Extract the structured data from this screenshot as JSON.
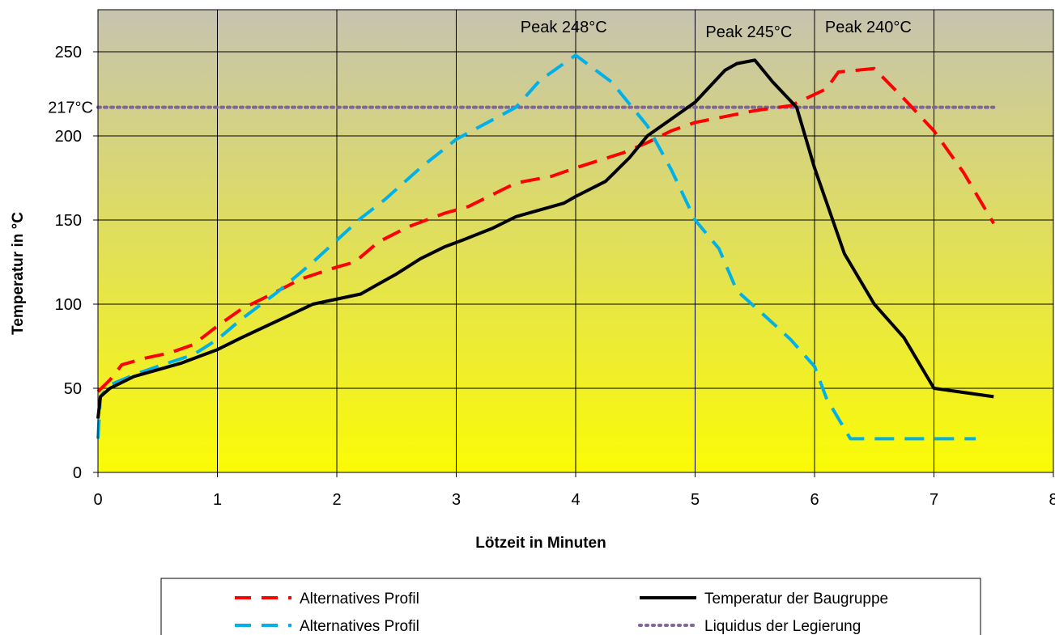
{
  "chart_data": {
    "type": "line",
    "title": "",
    "xlabel": "Lötzeit in Minuten",
    "ylabel": "Temperatur in °C",
    "xlim": [
      0,
      8
    ],
    "ylim": [
      0,
      250
    ],
    "x_ticks": [
      0,
      1,
      2,
      3,
      4,
      5,
      6,
      7,
      8
    ],
    "y_ticks": [
      0,
      50,
      100,
      150,
      200,
      250
    ],
    "grid": true,
    "background_gradient": [
      "#c6c3b0",
      "#fbfb05"
    ],
    "annotations": [
      {
        "text": "Peak 248°C",
        "x": 3.9,
        "y": 265
      },
      {
        "text": "Peak 245°C",
        "x": 5.45,
        "y": 262
      },
      {
        "text": "Peak 240°C",
        "x": 6.45,
        "y": 265
      },
      {
        "text": "217°C",
        "x": 0,
        "y": 217
      }
    ],
    "legend_position": "bottom",
    "series": [
      {
        "name": "Alternatives Profil",
        "color": "#ff0000",
        "style": "dashed",
        "points": [
          [
            0,
            48
          ],
          [
            0.1,
            55
          ],
          [
            0.2,
            64
          ],
          [
            0.4,
            68
          ],
          [
            0.6,
            71
          ],
          [
            0.8,
            76
          ],
          [
            1.0,
            87
          ],
          [
            1.2,
            97
          ],
          [
            1.4,
            104
          ],
          [
            1.7,
            115
          ],
          [
            2.0,
            122
          ],
          [
            2.15,
            125
          ],
          [
            2.35,
            137
          ],
          [
            2.6,
            146
          ],
          [
            2.9,
            154
          ],
          [
            3.1,
            158
          ],
          [
            3.5,
            172
          ],
          [
            3.8,
            176
          ],
          [
            4.0,
            181
          ],
          [
            4.4,
            190
          ],
          [
            4.6,
            196
          ],
          [
            4.8,
            203
          ],
          [
            5.0,
            208
          ],
          [
            5.5,
            215
          ],
          [
            5.8,
            218
          ],
          [
            6.1,
            228
          ],
          [
            6.2,
            238
          ],
          [
            6.5,
            240
          ],
          [
            6.75,
            222
          ],
          [
            7.0,
            203
          ],
          [
            7.25,
            178
          ],
          [
            7.5,
            148
          ]
        ]
      },
      {
        "name": "Alternatives Profil",
        "color": "#00b0e8",
        "style": "dashed",
        "points": [
          [
            0,
            20
          ],
          [
            0.02,
            45
          ],
          [
            0.1,
            52
          ],
          [
            0.3,
            58
          ],
          [
            0.5,
            63
          ],
          [
            0.8,
            70
          ],
          [
            1.0,
            79
          ],
          [
            1.2,
            91
          ],
          [
            1.5,
            107
          ],
          [
            1.8,
            125
          ],
          [
            2.0,
            138
          ],
          [
            2.2,
            151
          ],
          [
            2.4,
            162
          ],
          [
            2.7,
            181
          ],
          [
            3.0,
            198
          ],
          [
            3.5,
            217
          ],
          [
            3.7,
            233
          ],
          [
            4.0,
            248
          ],
          [
            4.3,
            232
          ],
          [
            4.6,
            206
          ],
          [
            4.8,
            180
          ],
          [
            5.0,
            150
          ],
          [
            5.2,
            133
          ],
          [
            5.35,
            108
          ],
          [
            5.6,
            92
          ],
          [
            5.8,
            79
          ],
          [
            6.0,
            63
          ],
          [
            6.1,
            44
          ],
          [
            6.3,
            20
          ],
          [
            6.5,
            20
          ],
          [
            7.0,
            20
          ],
          [
            7.35,
            20
          ]
        ]
      },
      {
        "name": "Temperatur der Baugruppe",
        "color": "#000000",
        "style": "solid",
        "points": [
          [
            0,
            32
          ],
          [
            0.02,
            45
          ],
          [
            0.1,
            50
          ],
          [
            0.3,
            57
          ],
          [
            0.7,
            65
          ],
          [
            1.0,
            73
          ],
          [
            1.2,
            80
          ],
          [
            1.5,
            90
          ],
          [
            1.8,
            100
          ],
          [
            2.2,
            106
          ],
          [
            2.35,
            112
          ],
          [
            2.5,
            118
          ],
          [
            2.7,
            127
          ],
          [
            2.9,
            134
          ],
          [
            3.05,
            138
          ],
          [
            3.3,
            145
          ],
          [
            3.5,
            152
          ],
          [
            3.9,
            160
          ],
          [
            4.0,
            164
          ],
          [
            4.25,
            173
          ],
          [
            4.45,
            187
          ],
          [
            4.6,
            200
          ],
          [
            4.8,
            210
          ],
          [
            5.0,
            220
          ],
          [
            5.25,
            239
          ],
          [
            5.35,
            243
          ],
          [
            5.5,
            245
          ],
          [
            5.65,
            232
          ],
          [
            5.85,
            217
          ],
          [
            6.0,
            181
          ],
          [
            6.25,
            130
          ],
          [
            6.5,
            100
          ],
          [
            6.75,
            80
          ],
          [
            7.0,
            50
          ],
          [
            7.5,
            45
          ]
        ]
      },
      {
        "name": "Liquidus der Legierung",
        "color": "#8064a2",
        "style": "dotted",
        "points": [
          [
            0,
            217
          ],
          [
            7.5,
            217
          ]
        ]
      }
    ]
  }
}
